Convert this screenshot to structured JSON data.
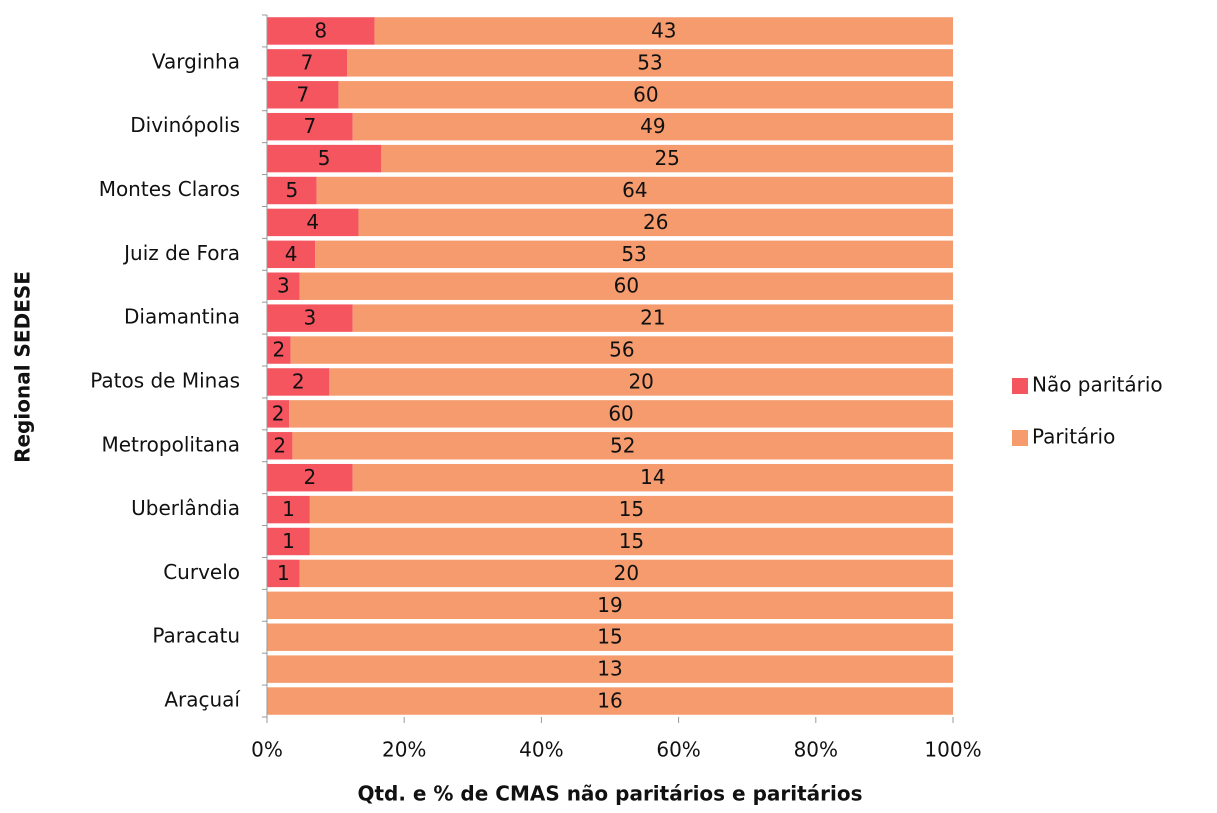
{
  "chart_data": {
    "type": "bar",
    "orientation": "horizontal",
    "stacking": "percent",
    "xlabel": "Qtd. e % de CMAS não paritários e paritários",
    "ylabel": "Regional SEDESE",
    "categories": [
      null,
      "Varginha",
      null,
      "Divinópolis",
      null,
      "Montes Claros",
      null,
      "Juiz de Fora",
      null,
      "Diamantina",
      null,
      "Patos de Minas",
      null,
      "Metropolitana",
      null,
      "Uberlândia",
      null,
      "Curvelo",
      null,
      "Paracatu",
      null,
      "Araçuaí"
    ],
    "series": [
      {
        "name": "Não paritário",
        "color": "#f4555f",
        "values": [
          8,
          7,
          7,
          7,
          5,
          5,
          4,
          4,
          3,
          3,
          2,
          2,
          2,
          2,
          2,
          1,
          1,
          1,
          0,
          0,
          0,
          0
        ]
      },
      {
        "name": "Paritário",
        "color": "#f59b6e",
        "values": [
          43,
          53,
          60,
          49,
          25,
          64,
          26,
          53,
          60,
          21,
          56,
          20,
          60,
          52,
          14,
          15,
          15,
          20,
          19,
          15,
          13,
          16
        ]
      }
    ],
    "xlim": [
      0,
      100
    ],
    "xticks": [
      {
        "value": 0,
        "label": "0%"
      },
      {
        "value": 20,
        "label": "20%"
      },
      {
        "value": 40,
        "label": "40%"
      },
      {
        "value": 60,
        "label": "60%"
      },
      {
        "value": 80,
        "label": "80%"
      },
      {
        "value": 100,
        "label": "100%"
      }
    ],
    "legend": "right"
  }
}
